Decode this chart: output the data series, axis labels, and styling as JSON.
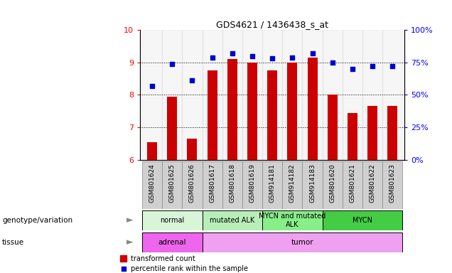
{
  "title": "GDS4621 / 1436438_s_at",
  "samples": [
    "GSM801624",
    "GSM801625",
    "GSM801626",
    "GSM801617",
    "GSM801618",
    "GSM801619",
    "GSM914181",
    "GSM914182",
    "GSM914183",
    "GSM801620",
    "GSM801621",
    "GSM801622",
    "GSM801623"
  ],
  "bar_values": [
    6.55,
    7.95,
    6.65,
    8.75,
    9.1,
    9.0,
    8.75,
    9.0,
    9.15,
    8.0,
    7.45,
    7.65,
    7.65
  ],
  "dot_values": [
    57,
    74,
    61,
    79,
    82,
    80,
    78,
    79,
    82,
    75,
    70,
    72,
    72
  ],
  "ylim_left": [
    6,
    10
  ],
  "ylim_right": [
    0,
    100
  ],
  "yticks_left": [
    6,
    7,
    8,
    9,
    10
  ],
  "yticks_right": [
    0,
    25,
    50,
    75,
    100
  ],
  "yticklabels_right": [
    "0%",
    "25%",
    "50%",
    "75%",
    "100%"
  ],
  "bar_color": "#cc0000",
  "dot_color": "#0000cc",
  "bar_width": 0.5,
  "group_defs": [
    {
      "label": "normal",
      "samples": [
        "GSM801624",
        "GSM801625",
        "GSM801626"
      ],
      "color": "#d8f5d8"
    },
    {
      "label": "mutated ALK",
      "samples": [
        "GSM801617",
        "GSM801618",
        "GSM801619"
      ],
      "color": "#b8eeb8"
    },
    {
      "label": "MYCN and mutated\nALK",
      "samples": [
        "GSM914181",
        "GSM914182",
        "GSM914183"
      ],
      "color": "#88ee88"
    },
    {
      "label": "MYCN",
      "samples": [
        "GSM801620",
        "GSM801621",
        "GSM801622",
        "GSM801623"
      ],
      "color": "#44cc44"
    }
  ],
  "tissue_defs": [
    {
      "label": "adrenal",
      "samples": [
        "GSM801624",
        "GSM801625",
        "GSM801626"
      ],
      "color": "#ee66ee"
    },
    {
      "label": "tumor",
      "samples": [
        "GSM801617",
        "GSM801618",
        "GSM801619",
        "GSM914181",
        "GSM914182",
        "GSM914183",
        "GSM801620",
        "GSM801621",
        "GSM801622",
        "GSM801623"
      ],
      "color": "#f0a0f0"
    }
  ],
  "legend_bar_label": "transformed count",
  "legend_dot_label": "percentile rank within the sample",
  "grid_values": [
    7,
    8,
    9
  ],
  "xlabel_genotype": "genotype/variation",
  "xlabel_tissue": "tissue",
  "label_col_color": "#d0d0d0"
}
